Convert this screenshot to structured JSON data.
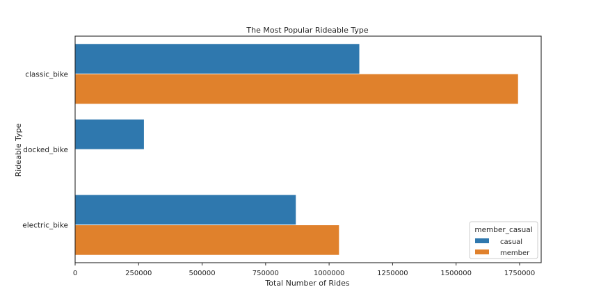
{
  "chart_data": {
    "type": "bar",
    "orientation": "horizontal",
    "title": "The Most Popular Rideable Type",
    "xlabel": "Total Number of Rides",
    "ylabel": "Rideable Type",
    "categories": [
      "classic_bike",
      "docked_bike",
      "electric_bike"
    ],
    "series": [
      {
        "name": "casual",
        "color": "#2f78ae",
        "values": [
          1120000,
          272000,
          870000
        ]
      },
      {
        "name": "member",
        "color": "#e0812c",
        "values": [
          1745000,
          0,
          1040000
        ]
      }
    ],
    "xlim": [
      0,
      1835000
    ],
    "xticks": [
      0,
      250000,
      500000,
      750000,
      1000000,
      1250000,
      1500000,
      1750000
    ],
    "grid": false,
    "legend": {
      "title": "member_casual",
      "placement": "lower-right"
    }
  }
}
